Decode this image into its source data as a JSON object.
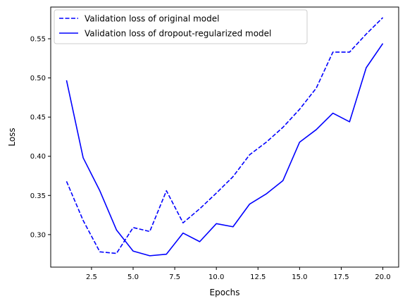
{
  "chart_data": {
    "type": "line",
    "title": "",
    "xlabel": "Epochs",
    "ylabel": "Loss",
    "xlim": [
      0.05,
      20.95
    ],
    "ylim": [
      0.2585,
      0.5905
    ],
    "x_ticks": [
      2.5,
      5.0,
      7.5,
      10.0,
      12.5,
      15.0,
      17.5,
      20.0
    ],
    "x_tick_labels": [
      "2.5",
      "5.0",
      "7.5",
      "10.0",
      "12.5",
      "15.0",
      "17.5",
      "20.0"
    ],
    "y_ticks": [
      0.3,
      0.35,
      0.4,
      0.45,
      0.5,
      0.55
    ],
    "y_tick_labels": [
      "0.30",
      "0.35",
      "0.40",
      "0.45",
      "0.50",
      "0.55"
    ],
    "grid": false,
    "legend_position": "top-left",
    "x": [
      1,
      2,
      3,
      4,
      5,
      6,
      7,
      8,
      9,
      10,
      11,
      12,
      13,
      14,
      15,
      16,
      17,
      18,
      19,
      20
    ],
    "series": [
      {
        "name": "Validation loss of original model",
        "style": "dashed",
        "color": "#0000ff",
        "values": [
          0.368,
          0.318,
          0.278,
          0.276,
          0.309,
          0.304,
          0.356,
          0.315,
          0.333,
          0.353,
          0.374,
          0.402,
          0.418,
          0.437,
          0.46,
          0.487,
          0.533,
          0.533,
          0.556,
          0.577
        ]
      },
      {
        "name": "Validation loss of dropout-regularized model",
        "style": "solid",
        "color": "#0000ff",
        "values": [
          0.497,
          0.398,
          0.356,
          0.306,
          0.279,
          0.273,
          0.275,
          0.302,
          0.291,
          0.314,
          0.31,
          0.339,
          0.352,
          0.369,
          0.418,
          0.434,
          0.455,
          0.444,
          0.513,
          0.544
        ]
      }
    ]
  }
}
